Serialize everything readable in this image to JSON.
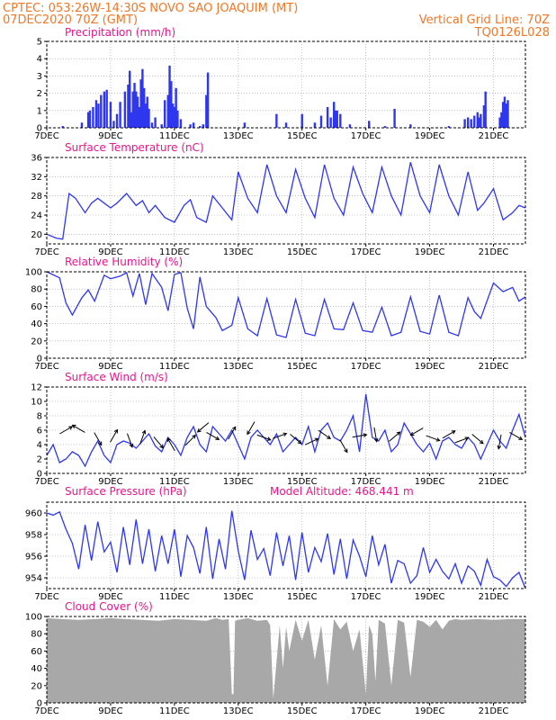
{
  "header": {
    "line1_left": "CPTEC:   053:26W-14:30S   NOVO SAO JOAQUIM (MT)",
    "line2_left": "07DEC2020 70Z (GMT)",
    "line2_right": "Vertical Grid Line: 70Z",
    "line3_right": "TQ0126L028"
  },
  "colors": {
    "header": "#f07828",
    "titles": "#e8168c",
    "series": "#2f37ee",
    "cloud": "#a8a8a8"
  },
  "x_axis": {
    "ticks": [
      "7DEC",
      "9DEC",
      "11DEC",
      "13DEC",
      "15DEC",
      "17DEC",
      "19DEC",
      "21DEC"
    ],
    "tick_days": [
      0,
      2,
      4,
      6,
      8,
      10,
      12,
      14
    ],
    "range_days": [
      0,
      15
    ]
  },
  "chart_data": [
    {
      "id": "precip",
      "type": "bar",
      "title": "Precipitation (mm/h)",
      "ylim": [
        0,
        5
      ],
      "yticks": [
        0,
        1,
        2,
        3,
        4,
        5
      ],
      "grid": true,
      "x": [
        0.5,
        1.1,
        1.3,
        1.35,
        1.45,
        1.55,
        1.62,
        1.7,
        1.8,
        1.88,
        2.0,
        2.1,
        2.2,
        2.3,
        2.45,
        2.55,
        2.6,
        2.65,
        2.7,
        2.75,
        2.8,
        2.85,
        2.9,
        2.95,
        3.0,
        3.05,
        3.1,
        3.15,
        3.2,
        3.3,
        3.4,
        3.6,
        3.7,
        3.8,
        3.85,
        3.9,
        3.95,
        4.0,
        4.05,
        4.1,
        4.2,
        4.5,
        4.6,
        4.8,
        4.9,
        5.0,
        5.05,
        6.2,
        7.2,
        7.5,
        8.0,
        8.4,
        8.6,
        8.8,
        8.9,
        9.0,
        9.05,
        9.1,
        9.2,
        9.5,
        10.1,
        10.6,
        10.9,
        11.4,
        12.6,
        13.1,
        13.2,
        13.3,
        13.4,
        13.5,
        13.55,
        13.6,
        13.7,
        13.75,
        14.2,
        14.25,
        14.3,
        14.35,
        14.4,
        14.45
      ],
      "values": [
        0.1,
        0.3,
        0.9,
        1.0,
        1.2,
        1.6,
        1.4,
        1.9,
        2.1,
        2.2,
        1.5,
        0.4,
        0.8,
        1.5,
        2.1,
        2.5,
        3.3,
        0.9,
        2.1,
        2.6,
        2.1,
        1.8,
        1.2,
        2.8,
        3.4,
        2.3,
        1.4,
        1.8,
        1.1,
        0.3,
        0.6,
        0.2,
        1.6,
        1.9,
        3.6,
        2.7,
        1.4,
        1.2,
        2.3,
        1.0,
        0.5,
        0.2,
        0.3,
        0.1,
        0.2,
        1.9,
        3.2,
        0.3,
        0.8,
        0.3,
        0.8,
        0.3,
        0.7,
        1.2,
        0.6,
        1.5,
        1.0,
        1.0,
        0.8,
        0.2,
        0.4,
        0.1,
        1.1,
        0.2,
        0.1,
        0.5,
        0.6,
        0.5,
        0.7,
        0.9,
        0.6,
        0.8,
        1.3,
        2.1,
        0.6,
        0.9,
        1.5,
        1.8,
        1.4,
        1.6
      ]
    },
    {
      "id": "temp",
      "type": "line",
      "title": "Surface Temperature (nC)",
      "ylim": [
        18,
        36
      ],
      "yticks": [
        20,
        24,
        28,
        32,
        36
      ],
      "grid": true,
      "x": [
        0,
        0.3,
        0.5,
        0.7,
        0.9,
        1.2,
        1.4,
        1.6,
        1.8,
        2.0,
        2.2,
        2.5,
        2.8,
        3.0,
        3.2,
        3.4,
        3.7,
        4.0,
        4.3,
        4.5,
        4.7,
        5.0,
        5.2,
        5.5,
        5.8,
        6.0,
        6.3,
        6.6,
        6.9,
        7.2,
        7.5,
        7.8,
        8.1,
        8.4,
        8.7,
        9.0,
        9.3,
        9.6,
        9.9,
        10.2,
        10.5,
        10.8,
        11.1,
        11.4,
        11.7,
        12.0,
        12.3,
        12.6,
        12.9,
        13.2,
        13.5,
        13.7,
        14.0,
        14.3,
        14.6,
        14.8,
        15.0
      ],
      "values": [
        20,
        19.2,
        19,
        28.5,
        27.5,
        24.5,
        26.5,
        27.5,
        26.5,
        25.5,
        26.5,
        28.5,
        26,
        27,
        24.5,
        26,
        23.5,
        22.5,
        26,
        27.2,
        23.5,
        22.5,
        28,
        25.5,
        23,
        33,
        27.5,
        24.5,
        34.5,
        28,
        24.5,
        33.5,
        27.5,
        23.5,
        34.5,
        27.5,
        24,
        34,
        28.5,
        24.5,
        34,
        28,
        24,
        35,
        28,
        24.5,
        34.5,
        28,
        24,
        33,
        25,
        26.5,
        29.5,
        23,
        24.5,
        26,
        25.5
      ]
    },
    {
      "id": "rh",
      "type": "line",
      "title": "Relative Humidity (%)",
      "ylim": [
        0,
        100
      ],
      "yticks": [
        0,
        20,
        40,
        60,
        80,
        100
      ],
      "grid": true,
      "x": [
        0,
        0.4,
        0.6,
        0.8,
        1.1,
        1.3,
        1.5,
        1.8,
        2.0,
        2.3,
        2.5,
        2.7,
        2.9,
        3.1,
        3.3,
        3.6,
        3.8,
        4.0,
        4.2,
        4.4,
        4.6,
        4.8,
        5.0,
        5.3,
        5.5,
        5.8,
        6.0,
        6.3,
        6.6,
        6.9,
        7.2,
        7.5,
        7.8,
        8.1,
        8.4,
        8.7,
        9.0,
        9.3,
        9.6,
        9.9,
        10.2,
        10.5,
        10.8,
        11.1,
        11.4,
        11.7,
        12.0,
        12.3,
        12.6,
        12.9,
        13.2,
        13.4,
        13.6,
        14.0,
        14.3,
        14.6,
        14.8,
        15.0
      ],
      "values": [
        100,
        93,
        64,
        50,
        70,
        79,
        66,
        96,
        92,
        95,
        99,
        72,
        98,
        62,
        98,
        82,
        55,
        97,
        99,
        58,
        34,
        94,
        60,
        47,
        32,
        38,
        70,
        34,
        26,
        69,
        27,
        24,
        68,
        29,
        26,
        68,
        34,
        33,
        64,
        32,
        30,
        59,
        26,
        30,
        71,
        31,
        28,
        73,
        30,
        26,
        70,
        54,
        46,
        87,
        77,
        82,
        66,
        71
      ]
    },
    {
      "id": "wind",
      "type": "line",
      "title": "Surface Wind (m/s)",
      "ylim": [
        0,
        12
      ],
      "yticks": [
        0,
        2,
        4,
        6,
        8,
        10,
        12
      ],
      "grid": true,
      "x": [
        0,
        0.2,
        0.4,
        0.6,
        0.8,
        1.0,
        1.2,
        1.4,
        1.6,
        1.8,
        2.0,
        2.2,
        2.4,
        2.6,
        2.8,
        3.0,
        3.2,
        3.4,
        3.6,
        3.8,
        4.0,
        4.2,
        4.4,
        4.6,
        4.8,
        5.0,
        5.2,
        5.4,
        5.6,
        5.8,
        6.0,
        6.2,
        6.4,
        6.6,
        6.8,
        7.0,
        7.2,
        7.4,
        7.6,
        7.8,
        8.0,
        8.2,
        8.4,
        8.6,
        8.8,
        9.0,
        9.2,
        9.4,
        9.6,
        9.8,
        10.0,
        10.2,
        10.4,
        10.6,
        10.8,
        11.0,
        11.2,
        11.4,
        11.6,
        11.8,
        12.0,
        12.2,
        12.4,
        12.6,
        12.8,
        13.0,
        13.2,
        13.4,
        13.6,
        13.8,
        14.0,
        14.2,
        14.4,
        14.6,
        14.8,
        15.0
      ],
      "values": [
        2.5,
        4,
        1.5,
        2,
        3,
        2.5,
        1,
        3,
        4.5,
        2.5,
        1.5,
        4,
        4.5,
        4.2,
        3.5,
        4.5,
        5.5,
        3.8,
        3,
        5,
        4,
        2.5,
        5,
        6.5,
        4,
        3,
        6.5,
        5.5,
        4.5,
        6,
        4,
        2,
        5,
        6,
        5,
        4,
        5.5,
        3,
        4,
        5,
        4,
        6.5,
        3,
        6,
        7,
        5,
        4.5,
        6,
        8,
        3,
        11,
        5,
        4.5,
        6,
        3,
        4,
        7,
        5.5,
        4,
        3,
        4.2,
        2,
        4.5,
        5,
        4,
        3.5,
        5,
        4,
        2,
        4,
        6,
        4.5,
        3.5,
        6,
        8.2,
        5
      ]
    },
    {
      "id": "pres",
      "type": "line",
      "title": "Surface Pressure (hPa)",
      "annotation": "Model Altitude: 468.441 m",
      "ylim": [
        953,
        961
      ],
      "yticks": [
        954,
        956,
        958,
        960
      ],
      "grid": true,
      "x": [
        0,
        0.2,
        0.4,
        0.6,
        0.8,
        1.0,
        1.2,
        1.4,
        1.6,
        1.8,
        2.0,
        2.2,
        2.4,
        2.6,
        2.8,
        3.0,
        3.2,
        3.4,
        3.6,
        3.8,
        4.0,
        4.2,
        4.4,
        4.6,
        4.8,
        5.0,
        5.2,
        5.4,
        5.6,
        5.8,
        6.0,
        6.2,
        6.4,
        6.6,
        6.8,
        7.0,
        7.2,
        7.4,
        7.6,
        7.8,
        8.0,
        8.2,
        8.4,
        8.6,
        8.8,
        9.0,
        9.2,
        9.4,
        9.6,
        9.8,
        10.0,
        10.2,
        10.4,
        10.6,
        10.8,
        11.0,
        11.2,
        11.4,
        11.6,
        11.8,
        12.0,
        12.2,
        12.4,
        12.6,
        12.8,
        13.0,
        13.2,
        13.4,
        13.6,
        13.8,
        14.0,
        14.2,
        14.4,
        14.6,
        14.8,
        15.0
      ],
      "values": [
        960,
        959.8,
        960.1,
        958.5,
        957.2,
        954.8,
        958.9,
        955.6,
        959.2,
        956.4,
        957.3,
        954.5,
        958.7,
        955.2,
        959.4,
        955.3,
        958.5,
        954.6,
        957.9,
        955.3,
        958.5,
        954.1,
        957.9,
        956.8,
        954.4,
        958.7,
        953.9,
        957.6,
        954.8,
        960.2,
        956.5,
        953.8,
        958.4,
        955.7,
        956.7,
        954.2,
        958.2,
        955.1,
        957.9,
        953.8,
        958.2,
        954.5,
        956.8,
        955.5,
        958.1,
        954.3,
        957.6,
        953.9,
        957.5,
        956,
        954.1,
        957.9,
        955.2,
        957.1,
        953.5,
        955.6,
        955.3,
        953.5,
        954.2,
        956.8,
        954.5,
        955.7,
        954.6,
        953.9,
        955.3,
        953.5,
        955.1,
        954.6,
        953.3,
        955.7,
        954.1,
        953.8,
        953.2,
        954,
        954.5,
        952.8
      ]
    },
    {
      "id": "cloud",
      "type": "area",
      "title": "Cloud Cover (%)",
      "ylim": [
        0,
        100
      ],
      "yticks": [
        0,
        20,
        40,
        60,
        80,
        100
      ],
      "grid": true,
      "x": [
        0,
        0.5,
        1.0,
        1.5,
        2.0,
        2.5,
        3.0,
        3.5,
        4.0,
        4.5,
        5.0,
        5.3,
        5.5,
        5.7,
        5.8,
        5.85,
        5.9,
        6.0,
        6.3,
        6.6,
        6.9,
        7.0,
        7.1,
        7.3,
        7.4,
        7.5,
        7.6,
        7.8,
        8.0,
        8.2,
        8.4,
        8.6,
        8.8,
        9.0,
        9.2,
        9.4,
        9.6,
        9.8,
        10.0,
        10.1,
        10.2,
        10.3,
        10.4,
        10.6,
        10.8,
        11.0,
        11.2,
        11.4,
        11.6,
        11.8,
        12.0,
        12.2,
        12.4,
        12.6,
        12.8,
        13.0,
        13.5,
        14.0,
        14.5,
        15.0
      ],
      "values": [
        98,
        97,
        96,
        97,
        98,
        97,
        96,
        95,
        97,
        96,
        95,
        98,
        96,
        97,
        10,
        10,
        95,
        96,
        98,
        95,
        96,
        90,
        5,
        90,
        40,
        88,
        60,
        96,
        72,
        96,
        50,
        90,
        20,
        97,
        85,
        94,
        60,
        85,
        10,
        90,
        80,
        25,
        96,
        92,
        20,
        96,
        93,
        30,
        96,
        94,
        88,
        96,
        85,
        95,
        97,
        96,
        97,
        96,
        97,
        97
      ]
    }
  ]
}
